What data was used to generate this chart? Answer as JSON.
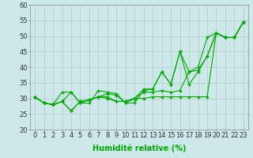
{
  "xlabel": "Humidité relative (%)",
  "background_color": "#cce8e8",
  "grid_color": "#b0c8c8",
  "line_color": "#00aa00",
  "x": [
    0,
    1,
    2,
    3,
    4,
    5,
    6,
    7,
    8,
    9,
    10,
    11,
    12,
    13,
    14,
    15,
    16,
    17,
    18,
    19,
    20,
    21,
    22,
    23
  ],
  "series": [
    [
      30.5,
      28.5,
      28.0,
      29.0,
      32.0,
      28.5,
      28.5,
      32.5,
      32.0,
      31.5,
      28.5,
      28.5,
      32.5,
      33.0,
      38.5,
      34.5,
      45.0,
      34.5,
      38.5,
      43.5,
      51.0,
      49.5,
      49.5,
      54.5
    ],
    [
      30.5,
      28.5,
      28.0,
      29.0,
      26.0,
      29.0,
      29.5,
      30.5,
      30.0,
      29.0,
      29.0,
      30.0,
      30.0,
      30.5,
      30.5,
      30.5,
      30.5,
      30.5,
      30.5,
      30.5,
      51.0,
      49.5,
      49.5,
      54.5
    ],
    [
      30.5,
      28.5,
      28.0,
      32.0,
      32.0,
      28.5,
      29.5,
      30.5,
      31.5,
      31.0,
      28.5,
      30.0,
      33.0,
      33.0,
      38.5,
      34.5,
      45.0,
      38.5,
      39.0,
      43.5,
      51.0,
      49.5,
      49.5,
      54.5
    ],
    [
      30.5,
      28.5,
      28.0,
      29.0,
      26.0,
      29.0,
      29.5,
      30.5,
      30.5,
      29.0,
      29.0,
      30.0,
      32.0,
      32.0,
      32.5,
      32.0,
      32.5,
      38.5,
      40.0,
      49.5,
      51.0,
      49.5,
      49.5,
      54.5
    ]
  ],
  "ylim": [
    20,
    60
  ],
  "xlim": [
    -0.5,
    23.5
  ],
  "yticks": [
    20,
    25,
    30,
    35,
    40,
    45,
    50,
    55,
    60
  ],
  "xticks": [
    0,
    1,
    2,
    3,
    4,
    5,
    6,
    7,
    8,
    9,
    10,
    11,
    12,
    13,
    14,
    15,
    16,
    17,
    18,
    19,
    20,
    21,
    22,
    23
  ],
  "xlabel_fontsize": 7,
  "tick_fontsize": 6,
  "ylabel_fontsize": 6
}
